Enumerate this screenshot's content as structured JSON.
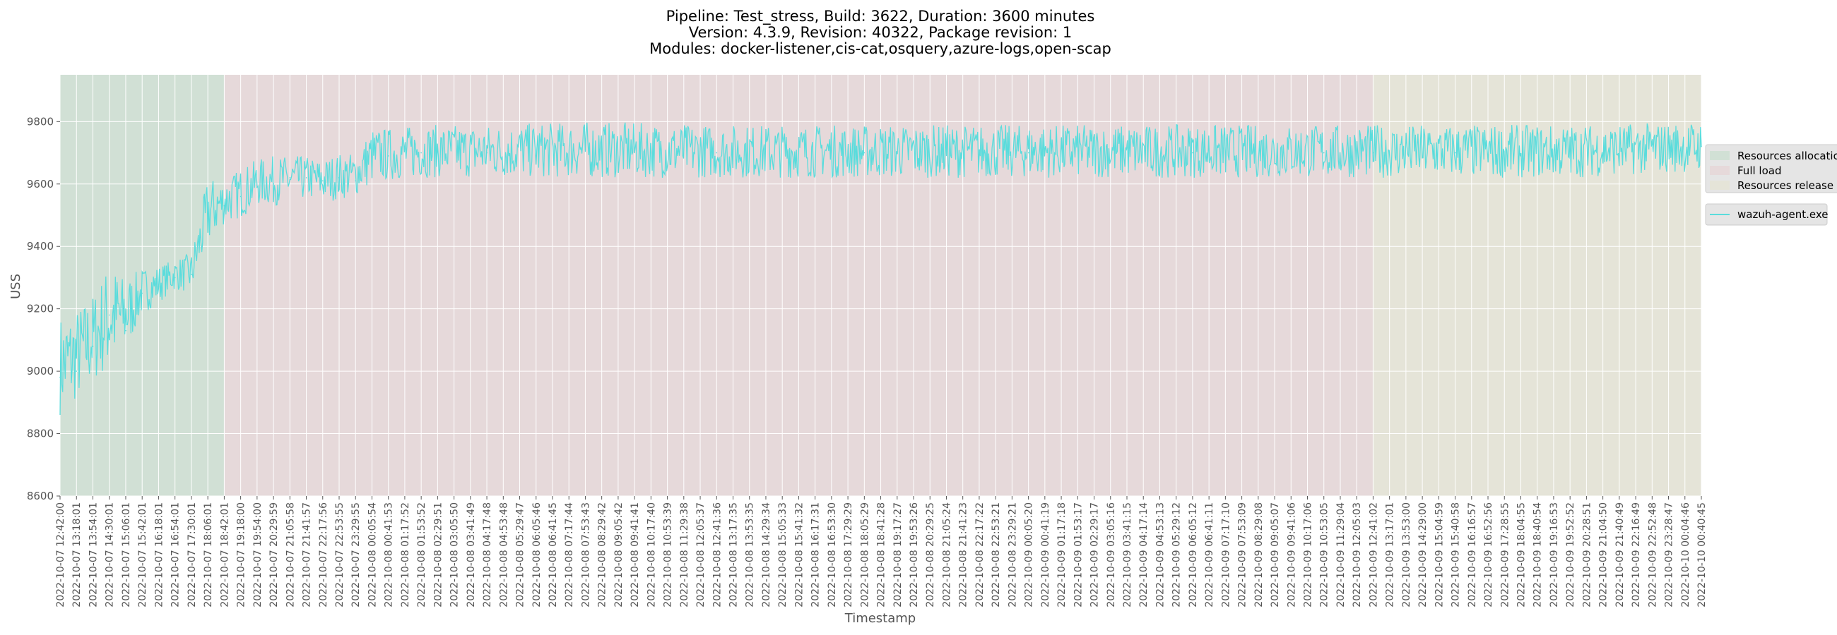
{
  "chart_data": {
    "type": "line",
    "title": [
      "Pipeline: Test_stress, Build: 3622, Duration: 3600 minutes",
      "Version: 4.3.9, Revision: 40322, Package revision: 1",
      "Modules: docker-listener,cis-cat,osquery,azure-logs,open-scap"
    ],
    "xlabel": "Timestamp",
    "ylabel": "USS",
    "ylim": [
      8600,
      9950
    ],
    "yticks": [
      8600,
      8800,
      9000,
      9200,
      9400,
      9600,
      9800
    ],
    "grid": true,
    "xticks": [
      "2022-10-07 12:42:00",
      "2022-10-07 13:18:01",
      "2022-10-07 13:54:01",
      "2022-10-07 14:30:01",
      "2022-10-07 15:06:01",
      "2022-10-07 15:42:01",
      "2022-10-07 16:18:01",
      "2022-10-07 16:54:01",
      "2022-10-07 17:30:01",
      "2022-10-07 18:06:01",
      "2022-10-07 18:42:01",
      "2022-10-07 19:18:00",
      "2022-10-07 19:54:00",
      "2022-10-07 20:29:59",
      "2022-10-07 21:05:58",
      "2022-10-07 21:41:57",
      "2022-10-07 22:17:56",
      "2022-10-07 22:53:55",
      "2022-10-07 23:29:55",
      "2022-10-08 00:05:54",
      "2022-10-08 00:41:53",
      "2022-10-08 01:17:52",
      "2022-10-08 01:53:52",
      "2022-10-08 02:29:51",
      "2022-10-08 03:05:50",
      "2022-10-08 03:41:49",
      "2022-10-08 04:17:48",
      "2022-10-08 04:53:48",
      "2022-10-08 05:29:47",
      "2022-10-08 06:05:46",
      "2022-10-08 06:41:45",
      "2022-10-08 07:17:44",
      "2022-10-08 07:53:43",
      "2022-10-08 08:29:42",
      "2022-10-08 09:05:42",
      "2022-10-08 09:41:41",
      "2022-10-08 10:17:40",
      "2022-10-08 10:53:39",
      "2022-10-08 11:29:38",
      "2022-10-08 12:05:37",
      "2022-10-08 12:41:36",
      "2022-10-08 13:17:35",
      "2022-10-08 13:53:35",
      "2022-10-08 14:29:34",
      "2022-10-08 15:05:33",
      "2022-10-08 15:41:32",
      "2022-10-08 16:17:31",
      "2022-10-08 16:53:30",
      "2022-10-08 17:29:29",
      "2022-10-08 18:05:29",
      "2022-10-08 18:41:28",
      "2022-10-08 19:17:27",
      "2022-10-08 19:53:26",
      "2022-10-08 20:29:25",
      "2022-10-08 21:05:24",
      "2022-10-08 21:41:23",
      "2022-10-08 22:17:22",
      "2022-10-08 22:53:21",
      "2022-10-08 23:29:21",
      "2022-10-09 00:05:20",
      "2022-10-09 00:41:19",
      "2022-10-09 01:17:18",
      "2022-10-09 01:53:17",
      "2022-10-09 02:29:17",
      "2022-10-09 03:05:16",
      "2022-10-09 03:41:15",
      "2022-10-09 04:17:14",
      "2022-10-09 04:53:13",
      "2022-10-09 05:29:12",
      "2022-10-09 06:05:12",
      "2022-10-09 06:41:11",
      "2022-10-09 07:17:10",
      "2022-10-09 07:53:09",
      "2022-10-09 08:29:08",
      "2022-10-09 09:05:07",
      "2022-10-09 09:41:06",
      "2022-10-09 10:17:06",
      "2022-10-09 10:53:05",
      "2022-10-09 11:29:04",
      "2022-10-09 12:05:03",
      "2022-10-09 12:41:02",
      "2022-10-09 13:17:01",
      "2022-10-09 13:53:00",
      "2022-10-09 14:29:00",
      "2022-10-09 15:04:59",
      "2022-10-09 15:40:58",
      "2022-10-09 16:16:57",
      "2022-10-09 16:52:56",
      "2022-10-09 17:28:55",
      "2022-10-09 18:04:55",
      "2022-10-09 18:40:54",
      "2022-10-09 19:16:53",
      "2022-10-09 19:52:52",
      "2022-10-09 20:28:51",
      "2022-10-09 21:04:50",
      "2022-10-09 21:40:49",
      "2022-10-09 22:16:49",
      "2022-10-09 22:52:48",
      "2022-10-09 23:28:47",
      "2022-10-10 00:04:46",
      "2022-10-10 00:40:45"
    ],
    "phases": [
      {
        "name": "Resources allocation",
        "start": "2022-10-07 12:42:00",
        "end": "2022-10-07 18:42:01",
        "color": "#b9d9c0"
      },
      {
        "name": "Full load",
        "start": "2022-10-07 18:42:01",
        "end": "2022-10-09 12:41:02",
        "color": "#e6c9cc"
      },
      {
        "name": "Resources release",
        "start": "2022-10-09 12:41:02",
        "end": "2022-10-10 00:40:45",
        "color": "#e5e2c7"
      }
    ],
    "series": [
      {
        "name": "wazuh-agent.exe",
        "color": "#5adcdc",
        "x": [
          "2022-10-07 12:42:00",
          "2022-10-07 13:18:01",
          "2022-10-07 13:54:01",
          "2022-10-07 14:30:01",
          "2022-10-07 15:06:01",
          "2022-10-07 15:42:01",
          "2022-10-07 16:18:01",
          "2022-10-07 16:54:01",
          "2022-10-07 17:30:01",
          "2022-10-07 18:06:01",
          "2022-10-07 18:42:01",
          "2022-10-07 19:18:00",
          "2022-10-07 19:54:00",
          "2022-10-07 20:29:59",
          "2022-10-07 21:05:58",
          "2022-10-07 21:41:57",
          "2022-10-07 22:17:56",
          "2022-10-07 22:53:55",
          "2022-10-07 23:29:55",
          "2022-10-08 00:05:54",
          "2022-10-08 00:41:53",
          "2022-10-08 01:53:52",
          "2022-10-08 04:17:48",
          "2022-10-08 07:53:43",
          "2022-10-08 12:41:36",
          "2022-10-08 18:05:29",
          "2022-10-09 00:05:20",
          "2022-10-09 06:05:12",
          "2022-10-09 10:53:05",
          "2022-10-09 12:41:02",
          "2022-10-09 15:40:58",
          "2022-10-09 19:52:52",
          "2022-10-10 00:40:45"
        ],
        "y": [
          8980,
          9000,
          9080,
          9180,
          9130,
          9250,
          9270,
          9300,
          9310,
          9480,
          9530,
          9560,
          9590,
          9600,
          9620,
          9620,
          9610,
          9620,
          9610,
          9680,
          9690,
          9700,
          9700,
          9710,
          9700,
          9700,
          9700,
          9700,
          9700,
          9700,
          9700,
          9710,
          9720
        ],
        "band_low": [
          8860,
          8900,
          8960,
          9000,
          9060,
          9180,
          9220,
          9260,
          9250,
          9400,
          9470,
          9490,
          9530,
          9530,
          9540,
          9550,
          9540,
          9550,
          9560,
          9600,
          9610,
          9620,
          9620,
          9620,
          9620,
          9620,
          9620,
          9620,
          9620,
          9620,
          9620,
          9620,
          9640
        ],
        "band_high": [
          9180,
          9200,
          9250,
          9350,
          9300,
          9330,
          9340,
          9360,
          9380,
          9620,
          9620,
          9650,
          9680,
          9690,
          9690,
          9690,
          9680,
          9700,
          9700,
          9780,
          9780,
          9790,
          9790,
          9800,
          9790,
          9790,
          9790,
          9790,
          9790,
          9790,
          9790,
          9790,
          9800
        ]
      }
    ]
  },
  "legend": {
    "phases": [
      "Resources allocation",
      "Full load",
      "Resources release"
    ],
    "series": [
      "wazuh-agent.exe"
    ]
  }
}
